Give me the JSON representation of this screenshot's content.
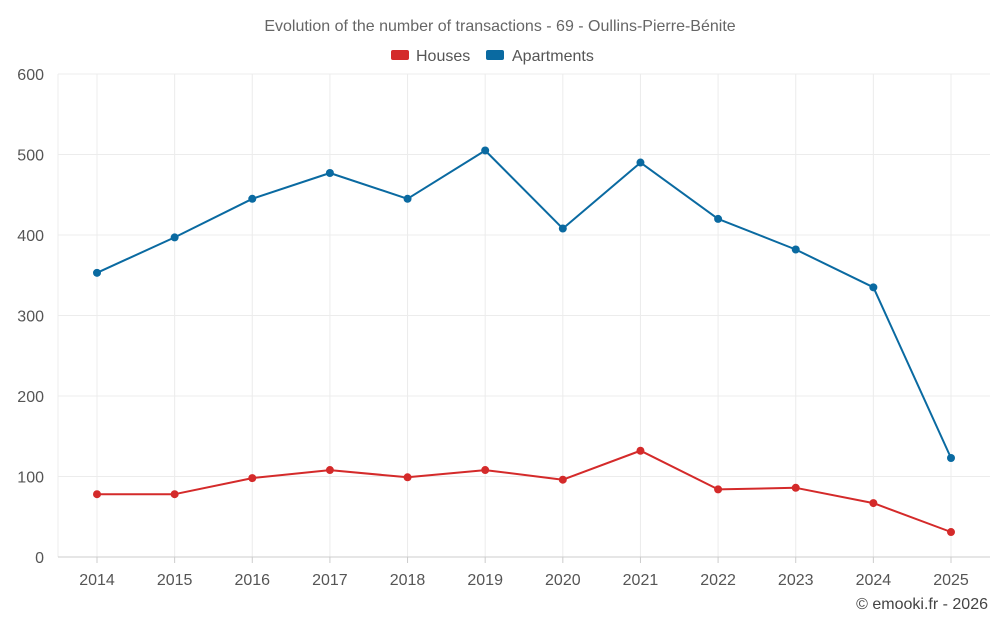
{
  "chart_data": {
    "type": "line",
    "title": "Evolution of the number of transactions - 69 - Oullins-Pierre-Bénite",
    "xlabel": "",
    "ylabel": "",
    "categories": [
      "2014",
      "2015",
      "2016",
      "2017",
      "2018",
      "2019",
      "2020",
      "2021",
      "2022",
      "2023",
      "2024",
      "2025"
    ],
    "ylim": [
      0,
      600
    ],
    "yticks": [
      0,
      100,
      200,
      300,
      400,
      500,
      600
    ],
    "grid": true,
    "legend_position": "top-center",
    "series": [
      {
        "name": "Houses",
        "color": "#d42a2a",
        "values": [
          78,
          78,
          98,
          108,
          99,
          108,
          96,
          132,
          84,
          86,
          67,
          31
        ]
      },
      {
        "name": "Apartments",
        "color": "#0a6aa1",
        "values": [
          353,
          397,
          445,
          477,
          445,
          505,
          408,
          490,
          420,
          382,
          335,
          123
        ]
      }
    ]
  },
  "credit": "© emooki.fr - 2026"
}
